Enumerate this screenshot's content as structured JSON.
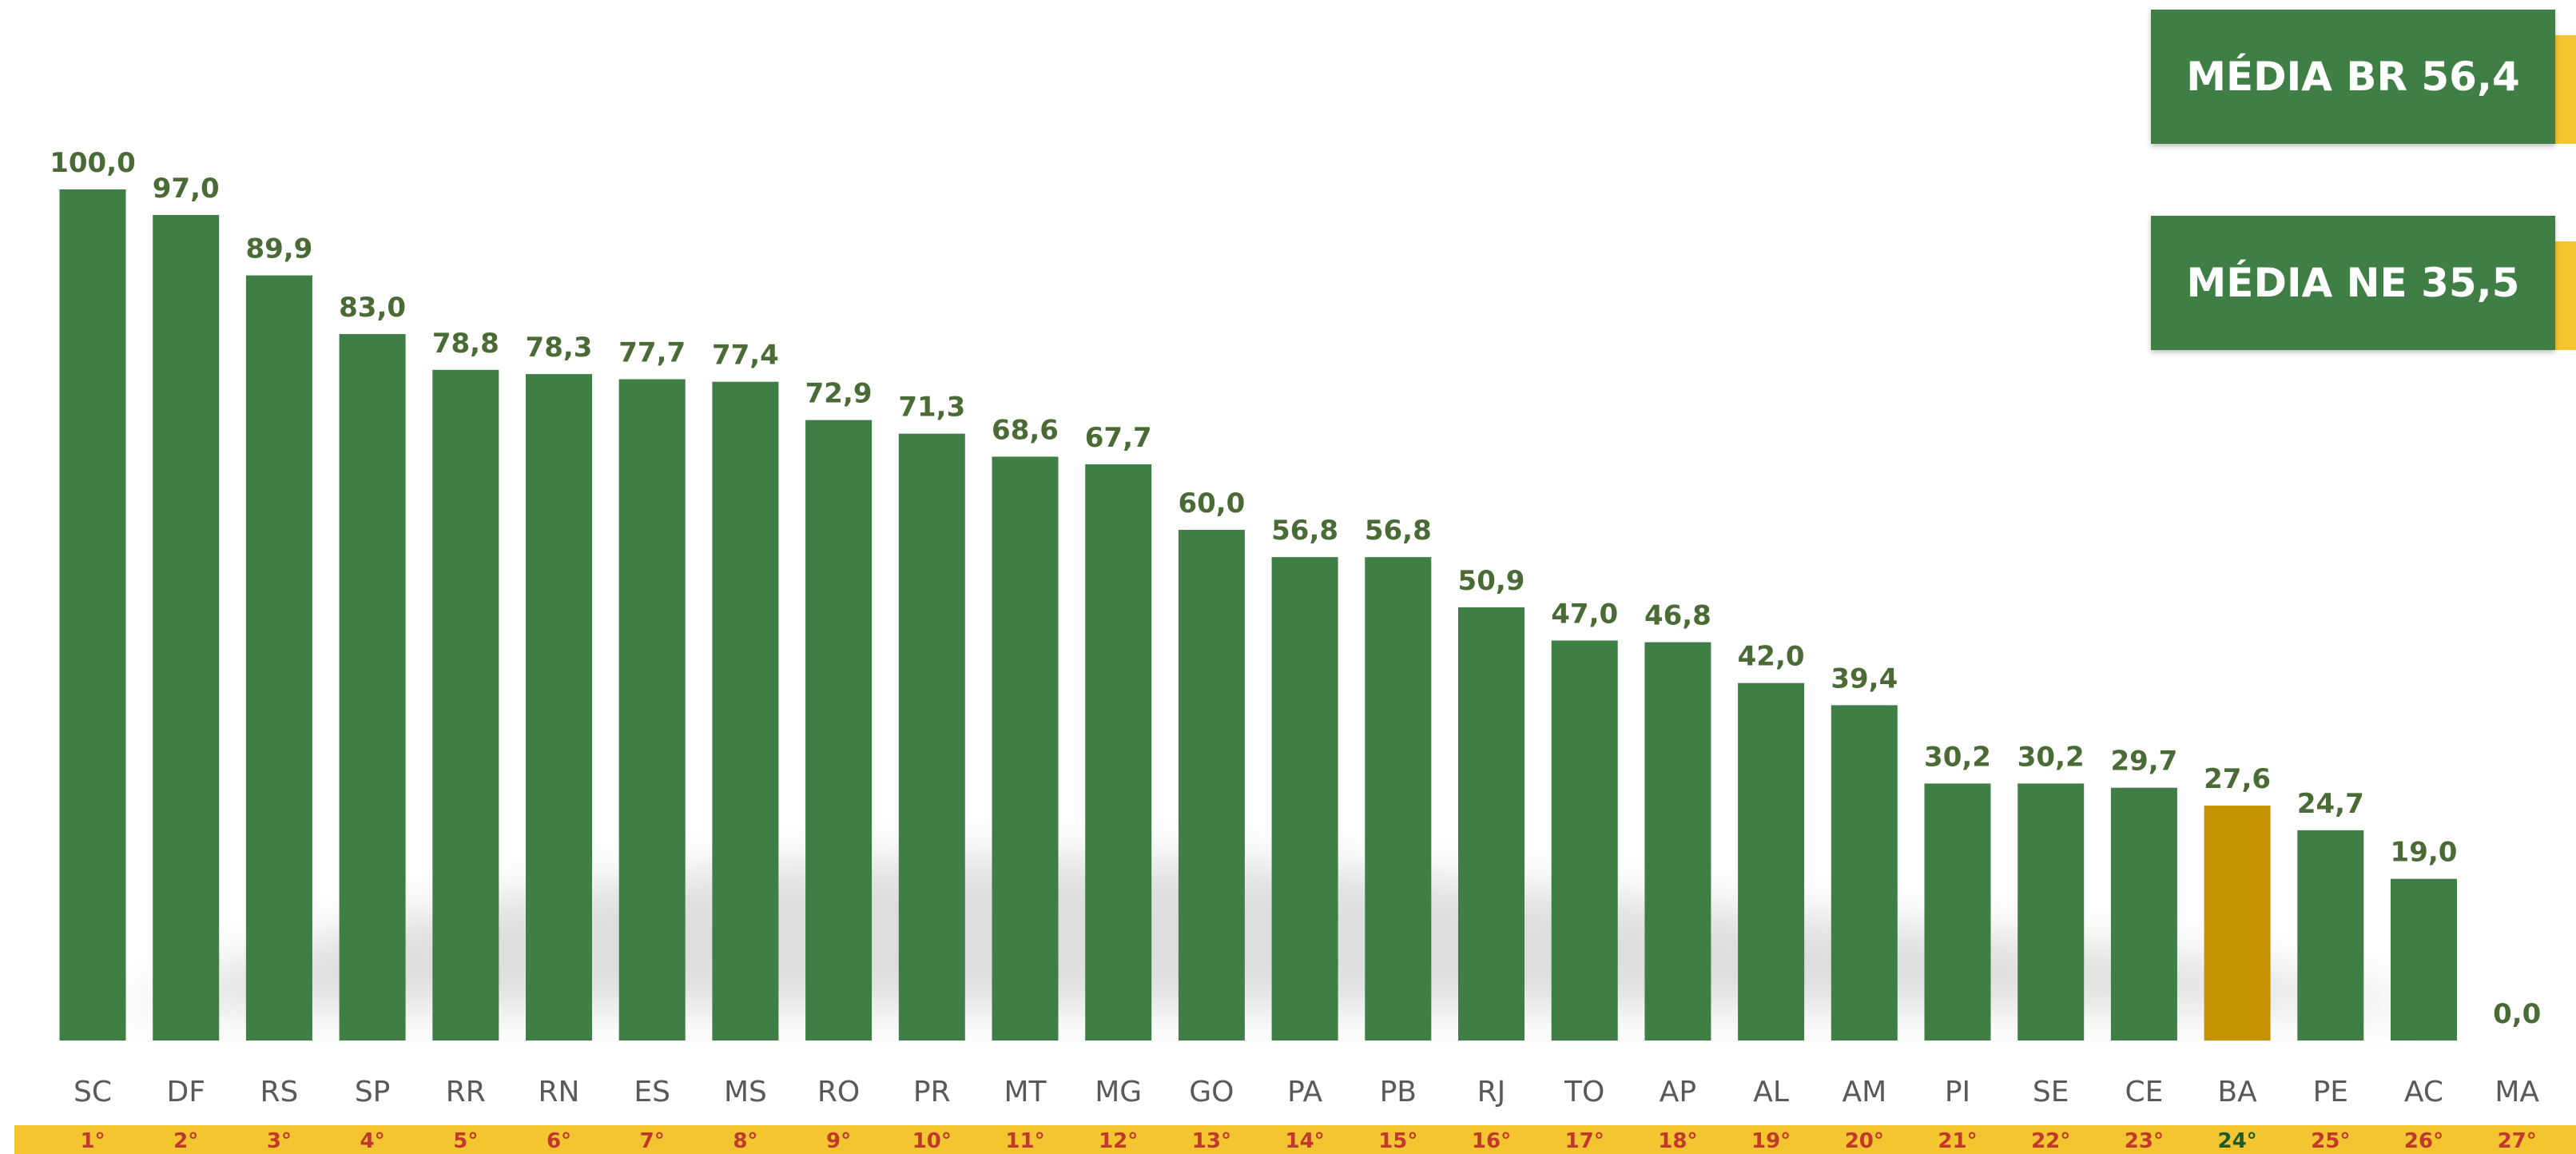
{
  "colors": {
    "bar": "#3f7f45",
    "highlight_bar": "#c69300",
    "value_label": "#4a6b35",
    "category_label": "#595959",
    "rank_band": "#f2c531",
    "rank_label": "#c0392b",
    "highlight_rank_label": "#1e5b2a",
    "box_fill": "#3f7f45",
    "box_shadow": "#f2c531"
  },
  "averages": {
    "br": "MÉDIA BR 56,4",
    "ne": "MÉDIA NE 35,5"
  },
  "chart_data": {
    "type": "bar",
    "categories": [
      "SC",
      "DF",
      "RS",
      "SP",
      "RR",
      "RN",
      "ES",
      "MS",
      "RO",
      "PR",
      "MT",
      "MG",
      "GO",
      "PA",
      "PB",
      "RJ",
      "TO",
      "AP",
      "AL",
      "AM",
      "PI",
      "SE",
      "CE",
      "BA",
      "PE",
      "AC",
      "MA"
    ],
    "values": [
      100.0,
      97.0,
      89.9,
      83.0,
      78.8,
      78.3,
      77.7,
      77.4,
      72.9,
      71.3,
      68.6,
      67.7,
      60.0,
      56.8,
      56.8,
      50.9,
      47.0,
      46.8,
      42.0,
      39.4,
      30.2,
      30.2,
      29.7,
      27.6,
      24.7,
      19.0,
      0.0
    ],
    "value_labels": [
      "100,0",
      "97,0",
      "89,9",
      "83,0",
      "78,8",
      "78,3",
      "77,7",
      "77,4",
      "72,9",
      "71,3",
      "68,6",
      "67,7",
      "60,0",
      "56,8",
      "56,8",
      "50,9",
      "47,0",
      "46,8",
      "42,0",
      "39,4",
      "30,2",
      "30,2",
      "29,7",
      "27,6",
      "24,7",
      "19,0",
      "0,0"
    ],
    "ranks": [
      "1°",
      "2°",
      "3°",
      "4°",
      "5°",
      "6°",
      "7°",
      "8°",
      "9°",
      "10°",
      "11°",
      "12°",
      "13°",
      "14°",
      "15°",
      "16°",
      "17°",
      "18°",
      "19°",
      "20°",
      "21°",
      "22°",
      "23°",
      "24°",
      "25°",
      "26°",
      "27°"
    ],
    "highlight": "BA",
    "ylim": [
      0,
      100
    ],
    "grid": false,
    "title": "",
    "xlabel": "",
    "ylabel": ""
  }
}
